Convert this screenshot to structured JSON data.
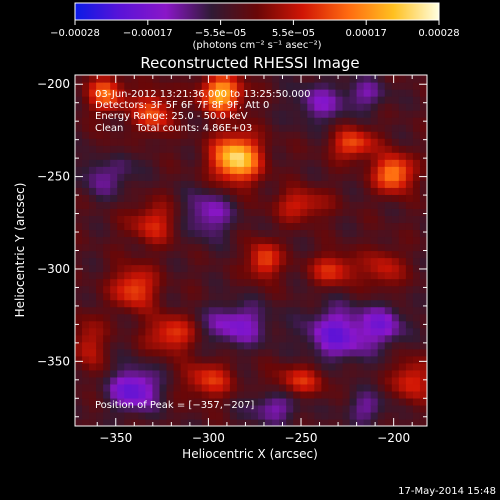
{
  "chart_data": {
    "type": "heatmap",
    "title": "Reconstructed RHESSI Image",
    "xlabel": "Heliocentric X (arcsec)",
    "ylabel": "Heliocentric Y (arcsec)",
    "xlim": [
      -372,
      -182
    ],
    "ylim": [
      -385,
      -195
    ],
    "x_ticks": [
      -350,
      -300,
      -250,
      -200
    ],
    "y_ticks": [
      -200,
      -250,
      -300,
      -350
    ],
    "tick_labels_x": [
      "−350",
      "−300",
      "−250",
      "−200"
    ],
    "tick_labels_y": [
      "−200",
      "−250",
      "−300",
      "−350"
    ],
    "colorbar": {
      "range": [
        -0.00028,
        0.00028
      ],
      "tick_labels": [
        "−0.00028",
        "−0.00017",
        "−5.5e−05",
        "5.5e−05",
        "0.00017",
        "0.00028"
      ],
      "unit": "(photons cm⁻² s⁻¹ asec⁻²)",
      "colors": [
        "#0a1be6",
        "#5a13d8",
        "#8a16c8",
        "#301a35",
        "#6a0707",
        "#d01505",
        "#ff6a10",
        "#ffc020",
        "#ffffe0"
      ]
    },
    "annotations": [
      "03-Jun-2012 13:21:36.000 to 13:25:50.000",
      "Detectors: 3F 5F 6F 7F 8F 9F, Att 0",
      "Energy Range: 25.0 - 50.0 keV",
      "Clean    Total counts: 4.86E+03",
      "Position of Peak = [−357,−207]"
    ],
    "peak": {
      "x": -357,
      "y": -207
    },
    "blobs": [
      {
        "x": -285,
        "y": -240,
        "amp": 1.0,
        "sx": 9,
        "sy": 9
      },
      {
        "x": -293,
        "y": -205,
        "amp": 0.85,
        "sx": 8,
        "sy": 7
      },
      {
        "x": -330,
        "y": -215,
        "amp": 0.55,
        "sx": 7,
        "sy": 8
      },
      {
        "x": -355,
        "y": -205,
        "amp": 0.6,
        "sx": 7,
        "sy": 7
      },
      {
        "x": -200,
        "y": -248,
        "amp": 0.75,
        "sx": 7,
        "sy": 7
      },
      {
        "x": -222,
        "y": -232,
        "amp": 0.55,
        "sx": 8,
        "sy": 6
      },
      {
        "x": -232,
        "y": -300,
        "amp": 0.45,
        "sx": 9,
        "sy": 6
      },
      {
        "x": -270,
        "y": -295,
        "amp": 0.55,
        "sx": 6,
        "sy": 7
      },
      {
        "x": -340,
        "y": -310,
        "amp": 0.55,
        "sx": 8,
        "sy": 8
      },
      {
        "x": -320,
        "y": -335,
        "amp": 0.5,
        "sx": 9,
        "sy": 7
      },
      {
        "x": -300,
        "y": -360,
        "amp": 0.45,
        "sx": 9,
        "sy": 7
      },
      {
        "x": -330,
        "y": -275,
        "amp": 0.4,
        "sx": 9,
        "sy": 8
      },
      {
        "x": -365,
        "y": -340,
        "amp": 0.35,
        "sx": 6,
        "sy": 10
      },
      {
        "x": -250,
        "y": -360,
        "amp": 0.4,
        "sx": 10,
        "sy": 6
      },
      {
        "x": -190,
        "y": -360,
        "amp": 0.45,
        "sx": 7,
        "sy": 8
      },
      {
        "x": -205,
        "y": -300,
        "amp": 0.35,
        "sx": 7,
        "sy": 8
      },
      {
        "x": -250,
        "y": -265,
        "amp": 0.4,
        "sx": 10,
        "sy": 6
      },
      {
        "x": -355,
        "y": -240,
        "amp": 0.45,
        "sx": 6,
        "sy": 8
      },
      {
        "x": -355,
        "y": -245,
        "amp": -0.55,
        "sx": 9,
        "sy": 9
      },
      {
        "x": -300,
        "y": -270,
        "amp": -0.4,
        "sx": 9,
        "sy": 9
      },
      {
        "x": -285,
        "y": -330,
        "amp": -0.45,
        "sx": 12,
        "sy": 8
      },
      {
        "x": -230,
        "y": -335,
        "amp": -0.55,
        "sx": 12,
        "sy": 10
      },
      {
        "x": -340,
        "y": -365,
        "amp": -0.6,
        "sx": 9,
        "sy": 8
      },
      {
        "x": -205,
        "y": -330,
        "amp": -0.4,
        "sx": 8,
        "sy": 8
      },
      {
        "x": -240,
        "y": -210,
        "amp": -0.35,
        "sx": 10,
        "sy": 8
      },
      {
        "x": -215,
        "y": -205,
        "amp": -0.3,
        "sx": 8,
        "sy": 6
      },
      {
        "x": -265,
        "y": -375,
        "amp": -0.35,
        "sx": 10,
        "sy": 6
      },
      {
        "x": -215,
        "y": -375,
        "amp": -0.3,
        "sx": 8,
        "sy": 6
      }
    ]
  },
  "footer": {
    "date": "17-May-2014 15:48"
  }
}
